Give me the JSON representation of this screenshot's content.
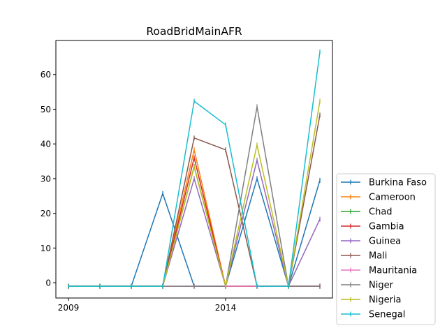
{
  "chart_data": {
    "type": "line",
    "title": "RoadBridMainAFR",
    "xlabel": "",
    "ylabel": "",
    "x": [
      2009,
      2010,
      2011,
      2012,
      2013,
      2014,
      2015,
      2016,
      2017
    ],
    "xlim": [
      2008.6,
      2017.4
    ],
    "ylim": [
      -4.4,
      69.8
    ],
    "xticks": [
      2009,
      2014
    ],
    "yticks": [
      0,
      10,
      20,
      30,
      40,
      50,
      60
    ],
    "grid": false,
    "legend_position": "lower-right-outside",
    "marker": "vertical-tick",
    "series": [
      {
        "name": "Burkina Faso",
        "color": "#1f77b4",
        "values": [
          -1,
          -1,
          -1,
          25.7,
          -1,
          -1,
          30,
          -1,
          29.5
        ]
      },
      {
        "name": "Cameroon",
        "color": "#ff7f0e",
        "values": [
          -1,
          -1,
          -1,
          -1,
          38.3,
          -1,
          -1,
          -1,
          -1
        ]
      },
      {
        "name": "Chad",
        "color": "#2ca02c",
        "values": [
          -1,
          -1,
          -1,
          -1,
          33.5,
          -1,
          -1,
          -1,
          -1
        ]
      },
      {
        "name": "Gambia",
        "color": "#d62728",
        "values": [
          -1,
          -1,
          -1,
          -1,
          36,
          -1,
          -1,
          -1,
          -1
        ]
      },
      {
        "name": "Guinea",
        "color": "#9467bd",
        "values": [
          -1,
          -1,
          -1,
          -1,
          30,
          -1,
          35.3,
          -1,
          18.3
        ]
      },
      {
        "name": "Mali",
        "color": "#8c564b",
        "values": [
          -1,
          -1,
          -1,
          -1,
          41.7,
          38.3,
          -1,
          -1,
          48.3
        ]
      },
      {
        "name": "Mauritania",
        "color": "#e377c2",
        "values": [
          -1,
          -1,
          -1,
          -1,
          -1,
          -1,
          -1,
          -1,
          -1
        ]
      },
      {
        "name": "Niger",
        "color": "#7f7f7f",
        "values": [
          -1,
          -1,
          -1,
          -1,
          -1,
          -1,
          50.7,
          -1,
          -1
        ]
      },
      {
        "name": "Nigeria",
        "color": "#bcbd22",
        "values": [
          -1,
          -1,
          -1,
          -1,
          33.3,
          -1,
          39.7,
          -1,
          52.3
        ]
      },
      {
        "name": "Senegal",
        "color": "#17becf",
        "values": [
          -1,
          -1,
          -1,
          -1,
          52.3,
          45.5,
          -1,
          -1,
          66.5
        ]
      }
    ]
  }
}
